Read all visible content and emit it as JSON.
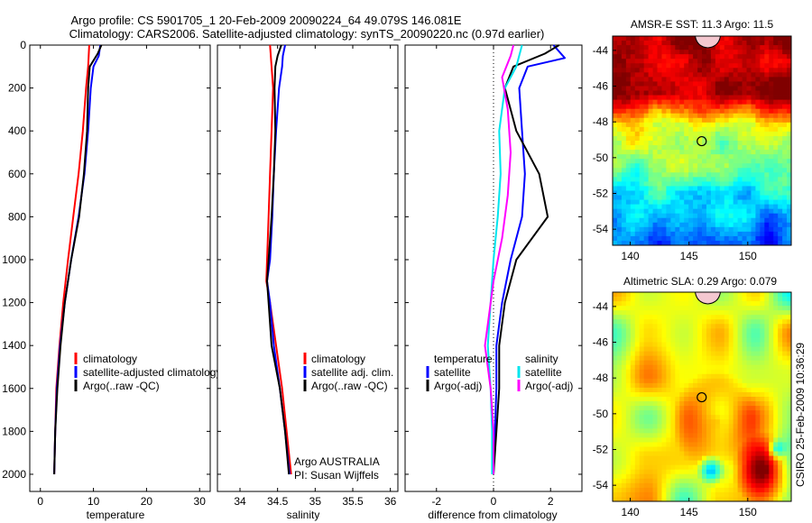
{
  "title": {
    "line1": "Argo profile: CS 5901705_1 20-Feb-2009 20090224_64 49.079S 146.081E",
    "line2": "Climatology: CARS2006. Satellite-adjusted climatology: synTS_20090220.nc (0.97d earlier)"
  },
  "colors": {
    "climatology": "#ff0000",
    "satellite": "#0000ff",
    "argo": "#000000",
    "satellite_diff": "#00e5ee",
    "argo_diff": "#ff00ff"
  },
  "chart_data": [
    {
      "type": "line",
      "xlabel": "temperature",
      "xlim": [
        -2,
        32
      ],
      "ylim": [
        2080,
        0
      ],
      "xticks": [
        0,
        10,
        20,
        30
      ],
      "yticks": [
        0,
        200,
        400,
        600,
        800,
        1000,
        1200,
        1400,
        1600,
        1800,
        2000
      ],
      "legend": [
        "climatology",
        "satellite-adjusted climatology",
        "Argo(..raw -QC)"
      ],
      "series": [
        {
          "name": "climatology",
          "color": "#ff0000",
          "points": [
            [
              9.2,
              0
            ],
            [
              9.0,
              100
            ],
            [
              8.6,
              200
            ],
            [
              8.0,
              400
            ],
            [
              7.2,
              600
            ],
            [
              6.2,
              800
            ],
            [
              5.2,
              1000
            ],
            [
              4.3,
              1200
            ],
            [
              3.6,
              1400
            ],
            [
              3.0,
              1600
            ],
            [
              2.8,
              1800
            ],
            [
              2.6,
              2000
            ]
          ]
        },
        {
          "name": "satellite-adjusted climatology",
          "color": "#0000ff",
          "points": [
            [
              11.3,
              0
            ],
            [
              11.0,
              50
            ],
            [
              10.0,
              100
            ],
            [
              9.5,
              200
            ],
            [
              9.0,
              400
            ],
            [
              8.3,
              600
            ],
            [
              7.2,
              800
            ],
            [
              5.8,
              1000
            ],
            [
              4.6,
              1200
            ],
            [
              3.7,
              1400
            ],
            [
              3.1,
              1600
            ],
            [
              2.8,
              1800
            ],
            [
              2.6,
              2000
            ]
          ]
        },
        {
          "name": "Argo(..raw -QC)",
          "color": "#000000",
          "points": [
            [
              11.5,
              0
            ],
            [
              10.8,
              40
            ],
            [
              9.3,
              100
            ],
            [
              9.0,
              200
            ],
            [
              8.8,
              400
            ],
            [
              8.2,
              600
            ],
            [
              7.3,
              800
            ],
            [
              5.8,
              1000
            ],
            [
              4.6,
              1200
            ],
            [
              3.8,
              1400
            ],
            [
              3.2,
              1600
            ],
            [
              2.8,
              1800
            ],
            [
              2.6,
              2000
            ]
          ]
        }
      ]
    },
    {
      "type": "line",
      "xlabel": "salinity",
      "xlim": [
        33.7,
        36.1
      ],
      "ylim": [
        2080,
        0
      ],
      "xticks": [
        34,
        34.5,
        35,
        35.5,
        36
      ],
      "legend": [
        "climatology",
        "satellite adj. clim.",
        "Argo(..raw -QC)"
      ],
      "annotation": [
        "Argo AUSTRALIA",
        "PI: Susan Wijffels"
      ],
      "series": [
        {
          "name": "climatology",
          "color": "#ff0000",
          "points": [
            [
              34.4,
              0
            ],
            [
              34.42,
              100
            ],
            [
              34.44,
              200
            ],
            [
              34.42,
              400
            ],
            [
              34.4,
              600
            ],
            [
              34.38,
              800
            ],
            [
              34.36,
              1000
            ],
            [
              34.35,
              1100
            ],
            [
              34.4,
              1200
            ],
            [
              34.48,
              1400
            ],
            [
              34.56,
              1600
            ],
            [
              34.62,
              1800
            ],
            [
              34.68,
              2000
            ]
          ]
        },
        {
          "name": "satellite adj. clim.",
          "color": "#0000ff",
          "points": [
            [
              34.6,
              0
            ],
            [
              34.57,
              50
            ],
            [
              34.56,
              100
            ],
            [
              34.52,
              200
            ],
            [
              34.48,
              400
            ],
            [
              34.45,
              600
            ],
            [
              34.43,
              800
            ],
            [
              34.4,
              1000
            ],
            [
              34.36,
              1100
            ],
            [
              34.4,
              1200
            ],
            [
              34.45,
              1400
            ],
            [
              34.53,
              1600
            ],
            [
              34.6,
              1800
            ],
            [
              34.66,
              2000
            ]
          ]
        },
        {
          "name": "Argo(..raw -QC)",
          "color": "#000000",
          "points": [
            [
              34.55,
              0
            ],
            [
              34.5,
              50
            ],
            [
              34.47,
              100
            ],
            [
              34.46,
              200
            ],
            [
              34.47,
              400
            ],
            [
              34.45,
              600
            ],
            [
              34.42,
              800
            ],
            [
              34.38,
              1000
            ],
            [
              34.36,
              1100
            ],
            [
              34.38,
              1200
            ],
            [
              34.42,
              1400
            ],
            [
              34.53,
              1600
            ],
            [
              34.6,
              1800
            ],
            [
              34.65,
              2000
            ]
          ]
        }
      ]
    },
    {
      "type": "line",
      "xlabel": "difference from climatology",
      "xlim": [
        -3.1,
        3.1
      ],
      "ylim": [
        2080,
        0
      ],
      "xticks": [
        -2,
        0,
        2
      ],
      "legend": {
        "left_header": "temperature",
        "left": [
          "satellite",
          "Argo(-adj)"
        ],
        "right_header": "salinity",
        "right": [
          "satellite",
          "Argo(-adj)"
        ]
      },
      "series": [
        {
          "name": "temperature satellite",
          "color": "#0000ff",
          "points": [
            [
              2.1,
              0
            ],
            [
              2.5,
              60
            ],
            [
              1.2,
              100
            ],
            [
              0.9,
              200
            ],
            [
              1.0,
              400
            ],
            [
              1.1,
              600
            ],
            [
              1.0,
              800
            ],
            [
              0.6,
              1000
            ],
            [
              0.3,
              1200
            ],
            [
              0.1,
              1400
            ],
            [
              0.1,
              1600
            ],
            [
              0.05,
              1800
            ],
            [
              0,
              2000
            ]
          ]
        },
        {
          "name": "temperature Argo(-adj)",
          "color": "#000000",
          "points": [
            [
              2.3,
              0
            ],
            [
              1.8,
              40
            ],
            [
              0.7,
              100
            ],
            [
              0.4,
              200
            ],
            [
              0.8,
              400
            ],
            [
              1.6,
              600
            ],
            [
              1.9,
              800
            ],
            [
              0.8,
              1000
            ],
            [
              0.4,
              1200
            ],
            [
              0.2,
              1400
            ],
            [
              0.2,
              1600
            ],
            [
              0.1,
              1800
            ],
            [
              0,
              2000
            ]
          ]
        },
        {
          "name": "salinity satellite",
          "color": "#00e5ee",
          "points": [
            [
              1.0,
              0
            ],
            [
              0.8,
              100
            ],
            [
              0.4,
              200
            ],
            [
              0.2,
              400
            ],
            [
              0.25,
              600
            ],
            [
              0.15,
              800
            ],
            [
              0.0,
              1000
            ],
            [
              -0.1,
              1200
            ],
            [
              -0.2,
              1400
            ],
            [
              -0.1,
              1600
            ],
            [
              -0.05,
              1800
            ],
            [
              -0.05,
              2000
            ]
          ]
        },
        {
          "name": "salinity Argo(-adj)",
          "color": "#ff00ff",
          "points": [
            [
              0.7,
              0
            ],
            [
              0.6,
              50
            ],
            [
              0.3,
              150
            ],
            [
              0.5,
              300
            ],
            [
              0.6,
              500
            ],
            [
              0.5,
              700
            ],
            [
              0.3,
              900
            ],
            [
              0.0,
              1100
            ],
            [
              -0.2,
              1300
            ],
            [
              -0.3,
              1400
            ],
            [
              -0.1,
              1600
            ],
            [
              0.0,
              1800
            ],
            [
              0.0,
              2000
            ]
          ]
        }
      ]
    },
    {
      "type": "heatmap",
      "title": "AMSR-E SST: 11.3 Argo: 11.5",
      "xticks": [
        140,
        145,
        150
      ],
      "yticks": [
        -44,
        -46,
        -48,
        -50,
        -52,
        -54
      ],
      "xlim": [
        138.5,
        153.7
      ],
      "ylim": [
        -54.9,
        -43.2
      ],
      "marker": {
        "lon": 146.081,
        "lat": -49.079
      }
    },
    {
      "type": "heatmap",
      "title": "Altimetric SLA: 0.29 Argo: 0.079",
      "xticks": [
        140,
        145,
        150
      ],
      "yticks": [
        -44,
        -46,
        -48,
        -50,
        -52,
        -54
      ],
      "xlim": [
        138.5,
        153.7
      ],
      "ylim": [
        -54.9,
        -43.2
      ],
      "marker": {
        "lon": 146.081,
        "lat": -49.079
      }
    }
  ],
  "side_text": "CSIRO 25-Feb-2009 10:36:29"
}
